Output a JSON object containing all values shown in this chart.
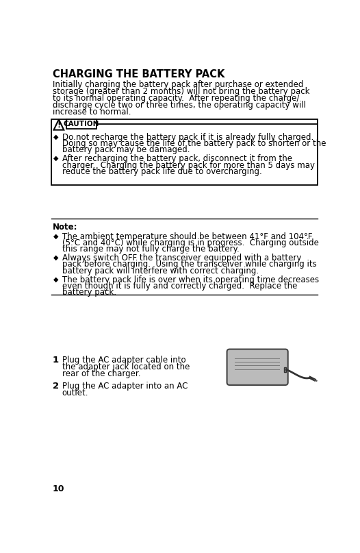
{
  "title": "CHARGING THE BATTERY PACK",
  "intro_lines": [
    "Initially charging the battery pack after purchase or extended",
    "storage (greater than 2 months) will not bring the battery pack",
    "to its normal operating capacity.  After repeating the charge/",
    "discharge cycle two or three times, the operating capacity will",
    "increase to normal."
  ],
  "caution_items": [
    [
      "Do not recharge the battery pack if it is already fully charged.",
      "Doing so may cause the life of the battery pack to shorten or the",
      "battery pack may be damaged."
    ],
    [
      "After recharging the battery pack, disconnect it from the",
      "charger.  Charging the battery pack for more than 5 days may",
      "reduce the battery pack life due to overcharging."
    ]
  ],
  "note_label": "Note:",
  "note_items": [
    [
      "The ambient temperature should be between 41°F and 104°F",
      "(5°C and 40°C) while charging is in progress.  Charging outside",
      "this range may not fully charge the battery."
    ],
    [
      "Always switch OFF the transceiver equipped with a battery",
      "pack before charging.  Using the transceiver while charging its",
      "battery pack will interfere with correct charging."
    ],
    [
      "The battery pack life is over when its operating time decreases",
      "even though it is fully and correctly charged.  Replace the",
      "battery pack."
    ]
  ],
  "step1_lines": [
    "Plug the AC adapter cable into",
    "the adapter jack located on the",
    "rear of the charger."
  ],
  "step2_lines": [
    "Plug the AC adapter into an AC",
    "outlet."
  ],
  "page_number": "10",
  "bg_color": "#ffffff",
  "text_color": "#000000",
  "font_size_title": 10.5,
  "font_size_body": 8.5
}
